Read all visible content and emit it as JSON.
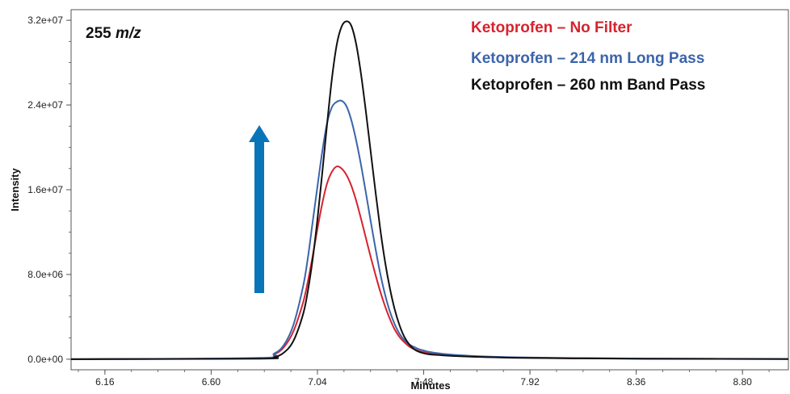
{
  "chart_data": {
    "type": "line",
    "title": "",
    "annotation": {
      "number": "255",
      "unit": "m/z"
    },
    "xlabel": "Minutes",
    "ylabel": "Intensity",
    "xlim": [
      6.02,
      8.99
    ],
    "ylim": [
      -1000000,
      33000000
    ],
    "x_ticks": [
      6.16,
      6.6,
      7.04,
      7.48,
      7.92,
      8.36,
      8.8
    ],
    "x_tick_labels": [
      "6.16",
      "6.60",
      "7.04",
      "7.48",
      "7.92",
      "8.36",
      "8.80"
    ],
    "y_ticks": [
      0,
      8000000,
      16000000,
      24000000,
      32000000
    ],
    "y_tick_labels": [
      "0.0e+00",
      "8.0e+06",
      "1.6e+07",
      "2.4e+07",
      "3.2e+07"
    ],
    "grid": false,
    "legend_position": "top-right",
    "x": [
      6.02,
      6.8,
      6.86,
      6.9,
      6.94,
      6.98,
      7.0,
      7.02,
      7.04,
      7.06,
      7.08,
      7.1,
      7.12,
      7.14,
      7.16,
      7.18,
      7.2,
      7.22,
      7.24,
      7.26,
      7.28,
      7.3,
      7.32,
      7.34,
      7.36,
      7.38,
      7.4,
      7.42,
      7.44,
      7.46,
      7.48,
      7.5,
      7.55,
      7.6,
      7.7,
      7.8,
      7.9,
      8.1,
      8.4,
      8.99
    ],
    "series": [
      {
        "name": "Ketoprofen – No Filter",
        "color": "#d6232e",
        "values": [
          0,
          100000,
          450000,
          1100000,
          2600000,
          5300000,
          7300000,
          9700000,
          12300000,
          14700000,
          16600000,
          17700000,
          18200000,
          18000000,
          17400000,
          16400000,
          15000000,
          13300000,
          11500000,
          9700000,
          8000000,
          6400000,
          5000000,
          3800000,
          2800000,
          2100000,
          1600000,
          1200000,
          950000,
          780000,
          660000,
          560000,
          420000,
          330000,
          230000,
          170000,
          130000,
          90000,
          50000,
          20000
        ]
      },
      {
        "name": "Ketoprofen – 214 nm Long Pass",
        "color": "#3c64ab",
        "values": [
          0,
          120000,
          520000,
          1300000,
          3200000,
          6800000,
          9500000,
          12900000,
          16300000,
          19600000,
          22300000,
          23800000,
          24300000,
          24400000,
          23900000,
          22600000,
          20700000,
          18400000,
          15800000,
          13100000,
          10500000,
          8100000,
          6100000,
          4500000,
          3300000,
          2400000,
          1800000,
          1400000,
          1150000,
          950000,
          820000,
          700000,
          530000,
          420000,
          290000,
          210000,
          160000,
          110000,
          60000,
          25000
        ]
      },
      {
        "name": "Ketoprofen – 260 nm Band Pass",
        "color": "#111111",
        "values": [
          0,
          50000,
          200000,
          600000,
          1700000,
          4200000,
          6400000,
          9400000,
          13200000,
          17600000,
          22200000,
          26500000,
          29700000,
          31400000,
          31900000,
          31500000,
          29800000,
          27000000,
          23500000,
          19700000,
          15900000,
          12300000,
          9200000,
          6700000,
          4700000,
          3200000,
          2100000,
          1400000,
          950000,
          700000,
          560000,
          470000,
          380000,
          310000,
          220000,
          160000,
          120000,
          80000,
          40000,
          15000
        ]
      }
    ]
  },
  "arrow_color": "#0a74b9",
  "axis_color": "#555555"
}
